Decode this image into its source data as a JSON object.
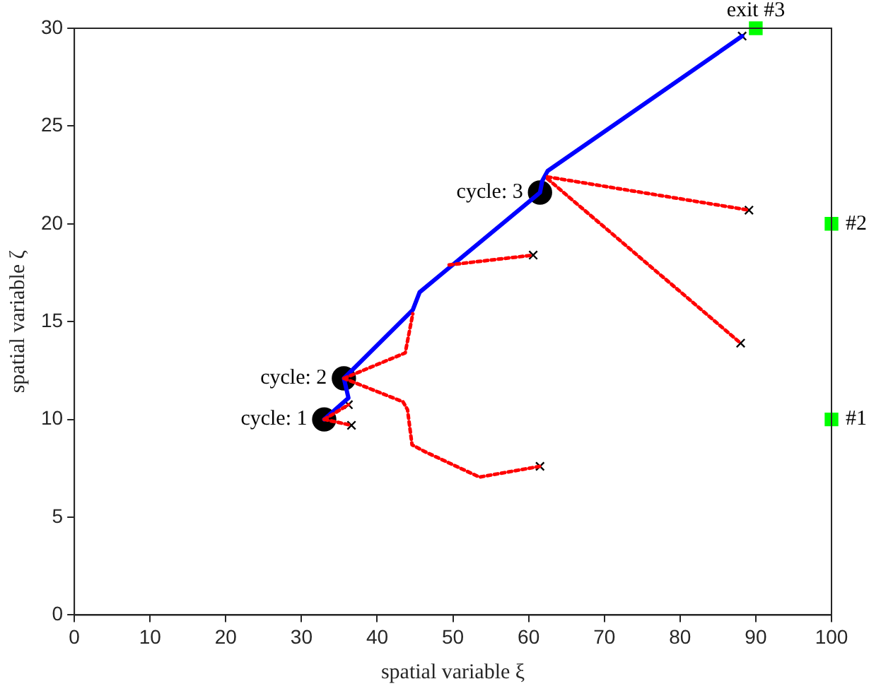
{
  "chart_data": {
    "type": "line",
    "xlabel": "spatial variable ξ",
    "ylabel": "spatial variable ζ",
    "xlim": [
      0,
      100
    ],
    "ylim": [
      0,
      30
    ],
    "xticks": [
      0,
      10,
      20,
      30,
      40,
      50,
      60,
      70,
      80,
      90,
      100
    ],
    "yticks": [
      0,
      5,
      10,
      15,
      20,
      25,
      30
    ],
    "grid": false,
    "legend": false,
    "series": [
      {
        "type": "line",
        "color": "#ff0000",
        "line_style": "dotted",
        "marker": "none",
        "x": [
          33,
          36.2
        ],
        "values": [
          10,
          10.75
        ]
      },
      {
        "type": "line",
        "color": "#ff0000",
        "line_style": "dotted",
        "marker": "none",
        "x": [
          33,
          36.6
        ],
        "values": [
          10,
          9.7
        ]
      },
      {
        "type": "line",
        "color": "#ff0000",
        "line_style": "dotted",
        "marker": "none",
        "x": [
          35.6,
          43.7,
          44.7
        ],
        "values": [
          12.1,
          13.4,
          15.4
        ]
      },
      {
        "type": "line",
        "color": "#ff0000",
        "line_style": "dotted",
        "marker": "none",
        "x": [
          35.6,
          43.4,
          44,
          44.6,
          46.3,
          53.5,
          61.5
        ],
        "values": [
          12.1,
          10.9,
          10.5,
          8.7,
          8.35,
          7.05,
          7.6
        ]
      },
      {
        "type": "line",
        "color": "#ff0000",
        "line_style": "dotted",
        "marker": "none",
        "x": [
          49.5,
          60.6
        ],
        "values": [
          17.9,
          18.4
        ]
      },
      {
        "type": "line",
        "color": "#ff0000",
        "line_style": "dotted",
        "marker": "none",
        "x": [
          62.5,
          89.1
        ],
        "values": [
          22.4,
          20.7
        ]
      },
      {
        "type": "line",
        "color": "#ff0000",
        "line_style": "dotted",
        "marker": "none",
        "x": [
          62.5,
          88
        ],
        "values": [
          22.3,
          13.9
        ]
      },
      {
        "type": "line",
        "color": "#0000ff",
        "line_style": "solid",
        "marker": "none",
        "x": [
          33,
          36.2,
          35.6,
          44.7,
          45.6,
          48.4,
          61.5,
          61.8,
          62.5,
          88.2
        ],
        "values": [
          10,
          11.1,
          12.1,
          15.6,
          16.5,
          17.4,
          21.6,
          22.2,
          22.7,
          29.6
        ]
      },
      {
        "type": "scatter",
        "color": "#000000",
        "marker": "circle",
        "x": [
          33,
          35.6,
          61.5
        ],
        "values": [
          10,
          12.1,
          21.6
        ]
      },
      {
        "type": "scatter",
        "color": "#000000",
        "marker": "cross",
        "x": [
          36.2,
          36.6,
          61.5,
          60.6,
          89.1,
          88,
          88.2
        ],
        "values": [
          10.75,
          9.7,
          7.6,
          18.4,
          20.7,
          13.9,
          29.6
        ]
      },
      {
        "type": "scatter",
        "color": "#00ff00",
        "marker": "square",
        "x": [
          90,
          100,
          100
        ],
        "values": [
          30,
          20,
          10
        ]
      }
    ],
    "annotations": [
      {
        "text": "cycle: 1",
        "x": 33,
        "y": 10
      },
      {
        "text": "cycle: 2",
        "x": 35.6,
        "y": 12.1
      },
      {
        "text": "cycle: 3",
        "x": 61.5,
        "y": 21.6
      },
      {
        "text": "exit #3",
        "x": 90,
        "y": 30
      },
      {
        "text": "#2",
        "x": 100,
        "y": 20
      },
      {
        "text": "#1",
        "x": 100,
        "y": 10
      }
    ]
  }
}
